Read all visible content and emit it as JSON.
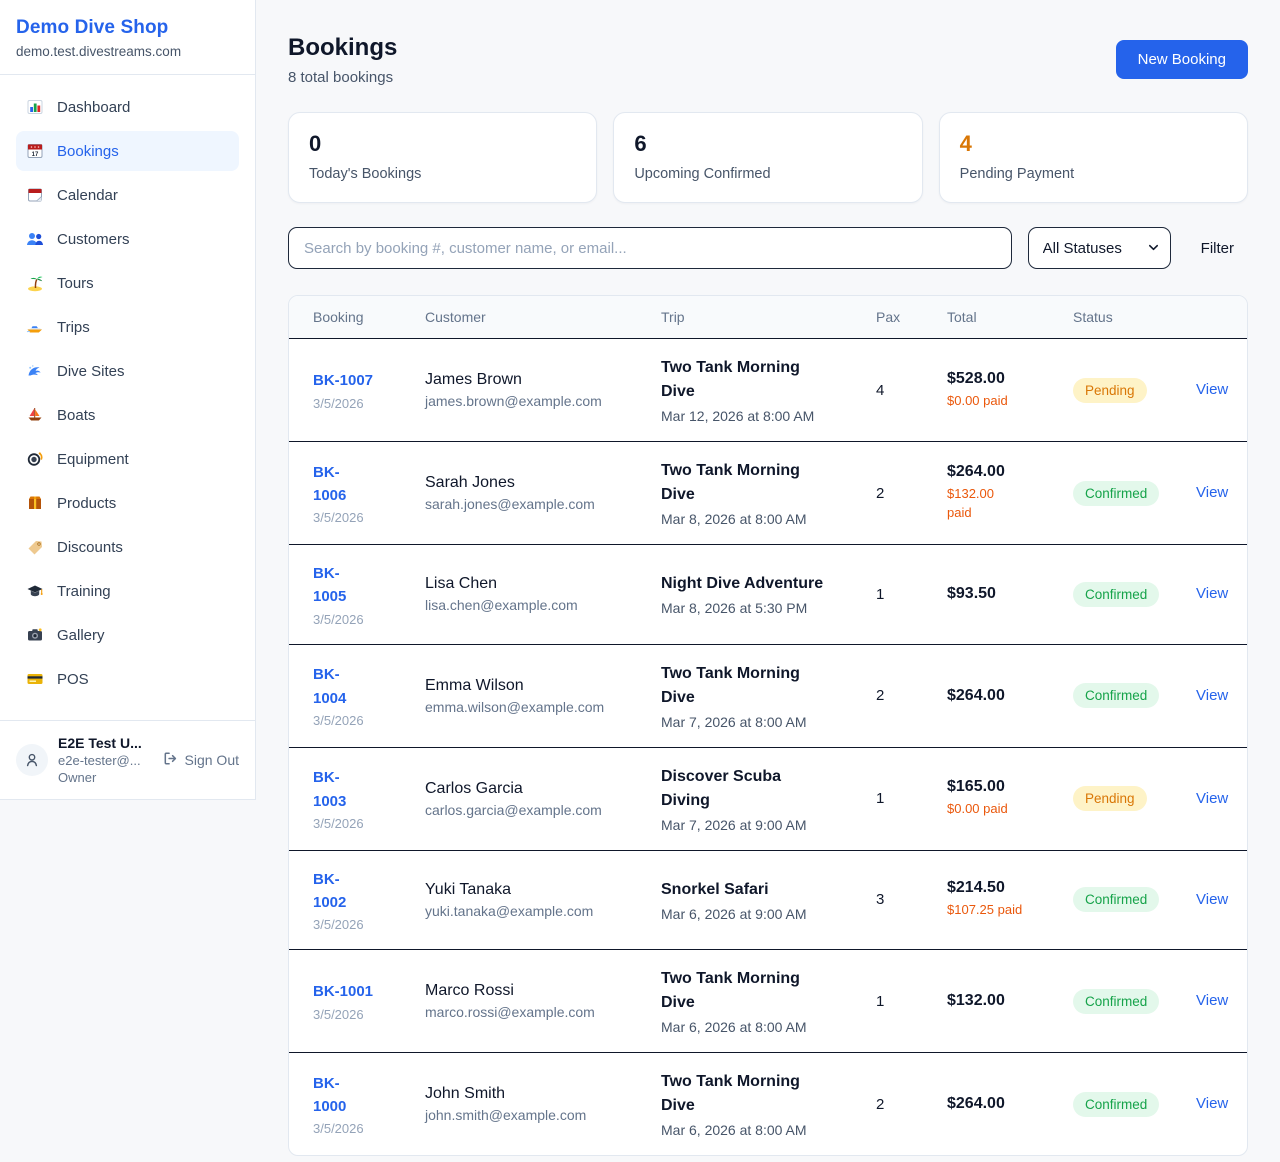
{
  "brand": {
    "name": "Demo Dive Shop",
    "domain": "demo.test.divestreams.com"
  },
  "sidebar": {
    "items": [
      {
        "label": "Dashboard",
        "icon": "dashboard-icon",
        "active": false
      },
      {
        "label": "Bookings",
        "icon": "bookings-icon",
        "active": true
      },
      {
        "label": "Calendar",
        "icon": "calendar-icon",
        "active": false
      },
      {
        "label": "Customers",
        "icon": "customers-icon",
        "active": false
      },
      {
        "label": "Tours",
        "icon": "tours-icon",
        "active": false
      },
      {
        "label": "Trips",
        "icon": "trips-icon",
        "active": false
      },
      {
        "label": "Dive Sites",
        "icon": "dive-sites-icon",
        "active": false
      },
      {
        "label": "Boats",
        "icon": "boats-icon",
        "active": false
      },
      {
        "label": "Equipment",
        "icon": "equipment-icon",
        "active": false
      },
      {
        "label": "Products",
        "icon": "products-icon",
        "active": false
      },
      {
        "label": "Discounts",
        "icon": "discounts-icon",
        "active": false
      },
      {
        "label": "Training",
        "icon": "training-icon",
        "active": false
      },
      {
        "label": "Gallery",
        "icon": "gallery-icon",
        "active": false
      },
      {
        "label": "POS",
        "icon": "pos-icon",
        "active": false
      }
    ],
    "user": {
      "name": "E2E Test U...",
      "email": "e2e-tester@...",
      "role": "Owner",
      "sign_out_label": "Sign Out"
    }
  },
  "header": {
    "title": "Bookings",
    "subtitle": "8 total bookings",
    "new_booking_label": "New Booking"
  },
  "stats": [
    {
      "value": "0",
      "label": "Today's Bookings",
      "accent": false
    },
    {
      "value": "6",
      "label": "Upcoming Confirmed",
      "accent": false
    },
    {
      "value": "4",
      "label": "Pending Payment",
      "accent": true
    }
  ],
  "filters": {
    "search_placeholder": "Search by booking #, customer name, or email...",
    "status_selected": "All Statuses",
    "filter_label": "Filter"
  },
  "table": {
    "columns": [
      "Booking",
      "Customer",
      "Trip",
      "Pax",
      "Total",
      "Status",
      ""
    ],
    "rows": [
      {
        "id": "BK-1007",
        "date": "3/5/2026",
        "customer": "James Brown",
        "email": "james.brown@example.com",
        "trip": "Two Tank Morning\nDive",
        "trip_time": "Mar 12, 2026 at 8:00 AM",
        "pax": "4",
        "total": "$528.00",
        "paid": "$0.00 paid",
        "status": "Pending",
        "status_type": "pending",
        "action": "View"
      },
      {
        "id": "BK-\n1006",
        "date": "3/5/2026",
        "customer": "Sarah Jones",
        "email": "sarah.jones@example.com",
        "trip": "Two Tank Morning\nDive",
        "trip_time": "Mar 8, 2026 at 8:00 AM",
        "pax": "2",
        "total": "$264.00",
        "paid": "$132.00\npaid",
        "status": "Confirmed",
        "status_type": "confirmed",
        "action": "View"
      },
      {
        "id": "BK-\n1005",
        "date": "3/5/2026",
        "customer": "Lisa Chen",
        "email": "lisa.chen@example.com",
        "trip": "Night Dive Adventure",
        "trip_time": "Mar 8, 2026 at 5:30 PM",
        "pax": "1",
        "total": "$93.50",
        "paid": null,
        "status": "Confirmed",
        "status_type": "confirmed",
        "action": "View"
      },
      {
        "id": "BK-\n1004",
        "date": "3/5/2026",
        "customer": "Emma Wilson",
        "email": "emma.wilson@example.com",
        "trip": "Two Tank Morning\nDive",
        "trip_time": "Mar 7, 2026 at 8:00 AM",
        "pax": "2",
        "total": "$264.00",
        "paid": null,
        "status": "Confirmed",
        "status_type": "confirmed",
        "action": "View"
      },
      {
        "id": "BK-\n1003",
        "date": "3/5/2026",
        "customer": "Carlos Garcia",
        "email": "carlos.garcia@example.com",
        "trip": "Discover Scuba\nDiving",
        "trip_time": "Mar 7, 2026 at 9:00 AM",
        "pax": "1",
        "total": "$165.00",
        "paid": "$0.00 paid",
        "status": "Pending",
        "status_type": "pending",
        "action": "View"
      },
      {
        "id": "BK-\n1002",
        "date": "3/5/2026",
        "customer": "Yuki Tanaka",
        "email": "yuki.tanaka@example.com",
        "trip": "Snorkel Safari",
        "trip_time": "Mar 6, 2026 at 9:00 AM",
        "pax": "3",
        "total": "$214.50",
        "paid": "$107.25 paid",
        "status": "Confirmed",
        "status_type": "confirmed",
        "action": "View"
      },
      {
        "id": "BK-1001",
        "date": "3/5/2026",
        "customer": "Marco Rossi",
        "email": "marco.rossi@example.com",
        "trip": "Two Tank Morning\nDive",
        "trip_time": "Mar 6, 2026 at 8:00 AM",
        "pax": "1",
        "total": "$132.00",
        "paid": null,
        "status": "Confirmed",
        "status_type": "confirmed",
        "action": "View"
      },
      {
        "id": "BK-\n1000",
        "date": "3/5/2026",
        "customer": "John Smith",
        "email": "john.smith@example.com",
        "trip": "Two Tank Morning\nDive",
        "trip_time": "Mar 6, 2026 at 8:00 AM",
        "pax": "2",
        "total": "$264.00",
        "paid": null,
        "status": "Confirmed",
        "status_type": "confirmed",
        "action": "View"
      }
    ]
  },
  "colors": {
    "accent_blue": "#2563eb",
    "pending_text": "#d97706",
    "pending_bg": "#fef3c7",
    "confirmed_text": "#16a34a",
    "confirmed_bg": "#e3f8eb",
    "paid_orange": "#ea580c"
  }
}
